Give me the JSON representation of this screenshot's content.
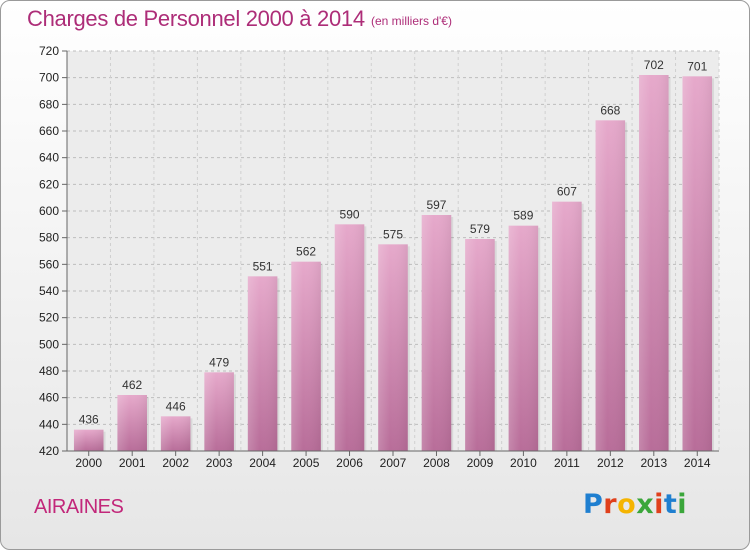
{
  "header": {
    "title": "Charges de Personnel 2000 à 2014",
    "unit": "(en milliers d'€)"
  },
  "footer": {
    "commune": "AIRAINES",
    "logo_text": "Proxiti",
    "logo_colors": [
      "#1f7fd0",
      "#e0401c",
      "#f5b400",
      "#3aa63a",
      "#e0401c",
      "#1f7fd0",
      "#3aa63a"
    ]
  },
  "chart_data": {
    "type": "bar",
    "title": "Charges de Personnel 2000 à 2014",
    "subtitle": "(en milliers d'€)",
    "categories": [
      "2000",
      "2001",
      "2002",
      "2003",
      "2004",
      "2005",
      "2006",
      "2007",
      "2008",
      "2009",
      "2010",
      "2011",
      "2012",
      "2013",
      "2014"
    ],
    "values": [
      436,
      462,
      446,
      479,
      551,
      562,
      590,
      575,
      597,
      579,
      589,
      607,
      668,
      702,
      701
    ],
    "ylim": [
      420,
      720
    ],
    "yticks": [
      420,
      440,
      460,
      480,
      500,
      520,
      540,
      560,
      580,
      600,
      620,
      640,
      660,
      680,
      700,
      720
    ],
    "grid": true,
    "bar_color": "#d98bb6",
    "xlabel": "",
    "ylabel": ""
  }
}
